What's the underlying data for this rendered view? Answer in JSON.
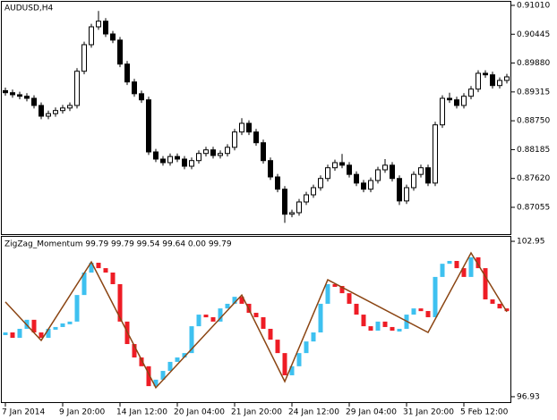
{
  "chart_data": [
    {
      "type": "candlestick",
      "title": "AUDUSD,H4",
      "bull_color": "#ffffff",
      "bear_color": "#000000",
      "line_color": "#000000",
      "ylim": [
        0.8653,
        0.9108
      ],
      "yticks": [
        0.87055,
        {
          "value": 0.8762,
          "label": "0.87620"
        },
        0.88185,
        {
          "value": 0.8875,
          "label": "0.88750"
        },
        0.89315,
        {
          "value": 0.8988,
          "label": "0.89880"
        },
        0.90445,
        {
          "value": 0.9101,
          "label": "0.91010"
        }
      ],
      "candles": [
        [
          0.8934,
          0.894,
          0.8924,
          0.893
        ],
        [
          0.893,
          0.8936,
          0.892,
          0.8926
        ],
        [
          0.8926,
          0.8932,
          0.8917,
          0.8923
        ],
        [
          0.8923,
          0.8929,
          0.8913,
          0.8919
        ],
        [
          0.8919,
          0.8925,
          0.8899,
          0.8905
        ],
        [
          0.8905,
          0.8911,
          0.8878,
          0.8884
        ],
        [
          0.8884,
          0.8895,
          0.8878,
          0.8889
        ],
        [
          0.8889,
          0.8901,
          0.8883,
          0.8895
        ],
        [
          0.8895,
          0.8906,
          0.8889,
          0.89
        ],
        [
          0.89,
          0.8911,
          0.8894,
          0.8905
        ],
        [
          0.8905,
          0.8978,
          0.8899,
          0.8972
        ],
        [
          0.8972,
          0.903,
          0.8966,
          0.9024
        ],
        [
          0.9024,
          0.9065,
          0.9018,
          0.9059
        ],
        [
          0.9059,
          0.909,
          0.9053,
          0.907
        ],
        [
          0.907,
          0.9076,
          0.9039,
          0.9045
        ],
        [
          0.9045,
          0.9051,
          0.9027,
          0.9033
        ],
        [
          0.9033,
          0.9039,
          0.898,
          0.8986
        ],
        [
          0.8986,
          0.8992,
          0.8945,
          0.8951
        ],
        [
          0.8951,
          0.8957,
          0.8922,
          0.8928
        ],
        [
          0.8928,
          0.8934,
          0.891,
          0.8916
        ],
        [
          0.8916,
          0.8922,
          0.8808,
          0.8814
        ],
        [
          0.8814,
          0.882,
          0.8794,
          0.88
        ],
        [
          0.88,
          0.8806,
          0.8787,
          0.8793
        ],
        [
          0.8793,
          0.8811,
          0.8787,
          0.8805
        ],
        [
          0.8805,
          0.8811,
          0.8794,
          0.88
        ],
        [
          0.88,
          0.8806,
          0.878,
          0.8786
        ],
        [
          0.8786,
          0.8803,
          0.878,
          0.8797
        ],
        [
          0.8797,
          0.8817,
          0.8791,
          0.8811
        ],
        [
          0.8811,
          0.8824,
          0.8805,
          0.8818
        ],
        [
          0.8818,
          0.8824,
          0.8801,
          0.8807
        ],
        [
          0.8807,
          0.8817,
          0.8801,
          0.8811
        ],
        [
          0.8811,
          0.8829,
          0.8805,
          0.8823
        ],
        [
          0.8823,
          0.8859,
          0.8817,
          0.8853
        ],
        [
          0.8853,
          0.888,
          0.8847,
          0.887
        ],
        [
          0.887,
          0.8876,
          0.8847,
          0.8853
        ],
        [
          0.8853,
          0.8859,
          0.8826,
          0.8832
        ],
        [
          0.8832,
          0.8838,
          0.8791,
          0.8797
        ],
        [
          0.8797,
          0.8803,
          0.8759,
          0.8765
        ],
        [
          0.8765,
          0.8771,
          0.8735,
          0.8741
        ],
        [
          0.8741,
          0.8747,
          0.8675,
          0.8692
        ],
        [
          0.8692,
          0.8701,
          0.8686,
          0.8695
        ],
        [
          0.8695,
          0.8722,
          0.8689,
          0.8716
        ],
        [
          0.8716,
          0.8736,
          0.871,
          0.873
        ],
        [
          0.873,
          0.875,
          0.8724,
          0.8744
        ],
        [
          0.8744,
          0.8768,
          0.8738,
          0.8762
        ],
        [
          0.8762,
          0.8789,
          0.8756,
          0.8783
        ],
        [
          0.8783,
          0.8799,
          0.8777,
          0.8793
        ],
        [
          0.8793,
          0.881,
          0.8782,
          0.8788
        ],
        [
          0.8788,
          0.8794,
          0.8764,
          0.877
        ],
        [
          0.877,
          0.8776,
          0.8747,
          0.8753
        ],
        [
          0.8753,
          0.8759,
          0.8735,
          0.8741
        ],
        [
          0.8741,
          0.8764,
          0.8735,
          0.8758
        ],
        [
          0.8758,
          0.8785,
          0.8752,
          0.8779
        ],
        [
          0.8779,
          0.88,
          0.8773,
          0.8788
        ],
        [
          0.8788,
          0.8794,
          0.8756,
          0.8762
        ],
        [
          0.8762,
          0.8768,
          0.871,
          0.8718
        ],
        [
          0.8718,
          0.875,
          0.8712,
          0.8744
        ],
        [
          0.8744,
          0.8776,
          0.8738,
          0.877
        ],
        [
          0.877,
          0.8789,
          0.8764,
          0.8783
        ],
        [
          0.8783,
          0.8789,
          0.8747,
          0.8753
        ],
        [
          0.8753,
          0.8873,
          0.8747,
          0.8867
        ],
        [
          0.8867,
          0.8925,
          0.8861,
          0.8919
        ],
        [
          0.8919,
          0.893,
          0.891,
          0.8916
        ],
        [
          0.8916,
          0.8922,
          0.8899,
          0.8905
        ],
        [
          0.8905,
          0.8929,
          0.8899,
          0.8923
        ],
        [
          0.8923,
          0.8943,
          0.8917,
          0.8937
        ],
        [
          0.8937,
          0.8974,
          0.8931,
          0.8968
        ],
        [
          0.8968,
          0.8974,
          0.8959,
          0.8965
        ],
        [
          0.8965,
          0.8971,
          0.8938,
          0.8944
        ],
        [
          0.8944,
          0.896,
          0.8938,
          0.8954
        ],
        [
          0.8954,
          0.8967,
          0.8948,
          0.8961
        ]
      ]
    },
    {
      "type": "momentum",
      "title": "ZigZag_Momentum 99.79 99.79 99.54 99.64 0.00 99.79",
      "up_color": "#3ec1f0",
      "down_color": "#ee1c25",
      "ylim": [
        96.72,
        103.09
      ],
      "yticks": [
        96.93,
        102.95
      ],
      "values": [
        99.42,
        99.21,
        99.56,
        99.91,
        99.42,
        99.21,
        99.56,
        99.63,
        99.77,
        99.84,
        100.87,
        101.74,
        102.12,
        101.91,
        101.74,
        101.29,
        99.84,
        98.97,
        98.45,
        98.11,
        97.34,
        97.59,
        97.93,
        98.28,
        98.45,
        98.62,
        99.66,
        100.11,
        100.01,
        99.84,
        100.35,
        100.53,
        100.8,
        100.53,
        100.18,
        100.01,
        99.56,
        99.14,
        98.62,
        97.76,
        98.11,
        98.62,
        99.07,
        99.42,
        100.53,
        101.29,
        101.22,
        100.94,
        100.53,
        100.11,
        99.66,
        99.49,
        99.84,
        99.63,
        99.49,
        99.56,
        100.11,
        100.35,
        100.25,
        100.01,
        101.57,
        102.08,
        102.19,
        101.91,
        101.57,
        102.33,
        101.91,
        100.7,
        100.53,
        100.35,
        100.25
      ],
      "zigzag": {
        "color": "#8b4513",
        "x": [
          0,
          5,
          12,
          21,
          33,
          39,
          45,
          59,
          65,
          70
        ],
        "values": [
          100.6,
          99.11,
          102.15,
          97.28,
          100.87,
          97.52,
          101.46,
          99.42,
          102.5,
          100.22
        ]
      },
      "xticks": [
        {
          "value": 0,
          "label": "7 Jan 2014"
        },
        {
          "value": 8,
          "label": "9 Jan 20:00"
        },
        {
          "value": 16,
          "label": "14 Jan 12:00"
        },
        {
          "value": 24,
          "label": "20 Jan 04:00"
        },
        {
          "value": 32,
          "label": "21 Jan 20:00"
        },
        {
          "value": 40,
          "label": "24 Jan 12:00"
        },
        {
          "value": 48,
          "label": "29 Jan 04:00"
        },
        {
          "value": 56,
          "label": "31 Jan 20:00"
        },
        {
          "value": 64,
          "label": "5 Feb 12:00"
        }
      ]
    }
  ]
}
